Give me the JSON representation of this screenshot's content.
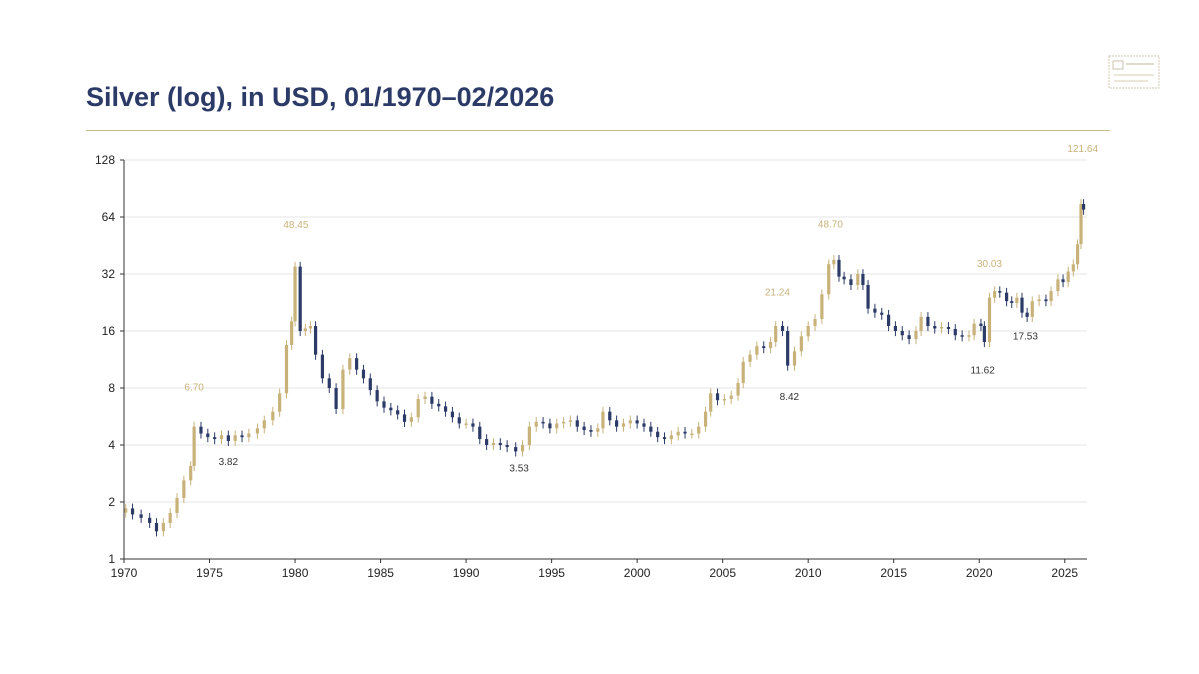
{
  "title": "Silver (log), in USD, 01/1970–02/2026",
  "colors": {
    "up": "#c8b27a",
    "down": "#2b3a67",
    "title": "#2b3a67",
    "rule": "#c9bb8a",
    "grid": "#e6e6e6",
    "peak_label": "#c8b27a",
    "trough_label": "#333333"
  },
  "chart_data": {
    "type": "candlestick",
    "title": "Silver (log), in USD, 01/1970–02/2026",
    "xlabel": "",
    "ylabel": "",
    "yscale": "log2",
    "xlim": [
      1970,
      2026.3
    ],
    "ylim": [
      1,
      128
    ],
    "grid": true,
    "x_ticks": [
      "1970",
      "1975",
      "1980",
      "1985",
      "1990",
      "1995",
      "2000",
      "2005",
      "2010",
      "2015",
      "2020",
      "2025"
    ],
    "y_ticks": [
      "1",
      "2",
      "4",
      "8",
      "16",
      "32",
      "64",
      "128"
    ],
    "annotations": [
      {
        "label": "6.70",
        "x": 1974.1,
        "y": 6.7,
        "kind": "peak"
      },
      {
        "label": "3.82",
        "x": 1976.1,
        "y": 3.82,
        "kind": "trough"
      },
      {
        "label": "48.45",
        "x": 1980.05,
        "y": 48.45,
        "kind": "peak"
      },
      {
        "label": "3.53",
        "x": 1993.1,
        "y": 3.53,
        "kind": "trough"
      },
      {
        "label": "21.24",
        "x": 2008.2,
        "y": 21.24,
        "kind": "peak"
      },
      {
        "label": "8.42",
        "x": 2008.9,
        "y": 8.42,
        "kind": "trough"
      },
      {
        "label": "48.70",
        "x": 2011.3,
        "y": 48.7,
        "kind": "peak"
      },
      {
        "label": "11.62",
        "x": 2020.2,
        "y": 11.62,
        "kind": "trough"
      },
      {
        "label": "30.03",
        "x": 2020.6,
        "y": 30.03,
        "kind": "peak"
      },
      {
        "label": "17.53",
        "x": 2022.7,
        "y": 17.53,
        "kind": "trough"
      },
      {
        "label": "121.64",
        "x": 2026.05,
        "y": 121.64,
        "kind": "peak"
      }
    ],
    "points": [
      [
        1970.1,
        1.85
      ],
      [
        1970.5,
        1.72
      ],
      [
        1971.0,
        1.65
      ],
      [
        1971.5,
        1.55
      ],
      [
        1971.9,
        1.4
      ],
      [
        1972.3,
        1.55
      ],
      [
        1972.7,
        1.75
      ],
      [
        1973.1,
        2.1
      ],
      [
        1973.5,
        2.6
      ],
      [
        1973.9,
        3.1
      ],
      [
        1974.1,
        5.0
      ],
      [
        1974.5,
        4.6
      ],
      [
        1974.9,
        4.4
      ],
      [
        1975.3,
        4.3
      ],
      [
        1975.7,
        4.5
      ],
      [
        1976.1,
        4.2
      ],
      [
        1976.5,
        4.5
      ],
      [
        1976.9,
        4.4
      ],
      [
        1977.3,
        4.6
      ],
      [
        1977.8,
        4.9
      ],
      [
        1978.2,
        5.4
      ],
      [
        1978.7,
        6.0
      ],
      [
        1979.1,
        7.5
      ],
      [
        1979.5,
        13.5
      ],
      [
        1979.8,
        18.0
      ],
      [
        1980.0,
        35.0
      ],
      [
        1980.3,
        16.0
      ],
      [
        1980.6,
        16.5
      ],
      [
        1980.9,
        17.0
      ],
      [
        1981.2,
        12.0
      ],
      [
        1981.6,
        9.0
      ],
      [
        1982.0,
        8.0
      ],
      [
        1982.4,
        6.2
      ],
      [
        1982.8,
        10.0
      ],
      [
        1983.2,
        11.5
      ],
      [
        1983.6,
        10.0
      ],
      [
        1984.0,
        9.0
      ],
      [
        1984.4,
        7.8
      ],
      [
        1984.8,
        6.8
      ],
      [
        1985.2,
        6.3
      ],
      [
        1985.6,
        6.1
      ],
      [
        1986.0,
        5.8
      ],
      [
        1986.4,
        5.3
      ],
      [
        1986.8,
        5.6
      ],
      [
        1987.2,
        7.0
      ],
      [
        1987.6,
        7.2
      ],
      [
        1988.0,
        6.6
      ],
      [
        1988.4,
        6.4
      ],
      [
        1988.8,
        6.0
      ],
      [
        1989.2,
        5.6
      ],
      [
        1989.6,
        5.2
      ],
      [
        1990.0,
        5.2
      ],
      [
        1990.4,
        5.0
      ],
      [
        1990.8,
        4.3
      ],
      [
        1991.2,
        4.0
      ],
      [
        1991.6,
        4.1
      ],
      [
        1992.0,
        4.0
      ],
      [
        1992.4,
        3.9
      ],
      [
        1992.9,
        3.7
      ],
      [
        1993.3,
        4.0
      ],
      [
        1993.7,
        5.0
      ],
      [
        1994.1,
        5.3
      ],
      [
        1994.5,
        5.2
      ],
      [
        1994.9,
        4.9
      ],
      [
        1995.3,
        5.2
      ],
      [
        1995.7,
        5.3
      ],
      [
        1996.1,
        5.4
      ],
      [
        1996.5,
        5.0
      ],
      [
        1996.9,
        4.8
      ],
      [
        1997.3,
        4.7
      ],
      [
        1997.7,
        4.9
      ],
      [
        1998.0,
        6.0
      ],
      [
        1998.4,
        5.4
      ],
      [
        1998.8,
        5.0
      ],
      [
        1999.2,
        5.2
      ],
      [
        1999.6,
        5.4
      ],
      [
        2000.0,
        5.2
      ],
      [
        2000.4,
        5.0
      ],
      [
        2000.8,
        4.7
      ],
      [
        2001.2,
        4.4
      ],
      [
        2001.6,
        4.3
      ],
      [
        2002.0,
        4.5
      ],
      [
        2002.4,
        4.7
      ],
      [
        2002.8,
        4.6
      ],
      [
        2003.2,
        4.6
      ],
      [
        2003.6,
        5.0
      ],
      [
        2004.0,
        6.0
      ],
      [
        2004.3,
        7.5
      ],
      [
        2004.7,
        6.9
      ],
      [
        2005.1,
        7.0
      ],
      [
        2005.5,
        7.3
      ],
      [
        2005.9,
        8.5
      ],
      [
        2006.2,
        11.0
      ],
      [
        2006.6,
        12.0
      ],
      [
        2007.0,
        13.3
      ],
      [
        2007.4,
        13.0
      ],
      [
        2007.8,
        14.0
      ],
      [
        2008.1,
        17.0
      ],
      [
        2008.5,
        16.0
      ],
      [
        2008.8,
        10.5
      ],
      [
        2009.2,
        12.5
      ],
      [
        2009.6,
        15.0
      ],
      [
        2010.0,
        17.0
      ],
      [
        2010.4,
        18.5
      ],
      [
        2010.8,
        25.0
      ],
      [
        2011.2,
        36.0
      ],
      [
        2011.5,
        38.0
      ],
      [
        2011.8,
        31.0
      ],
      [
        2012.1,
        30.0
      ],
      [
        2012.5,
        28.0
      ],
      [
        2012.9,
        32.0
      ],
      [
        2013.2,
        28.0
      ],
      [
        2013.5,
        21.0
      ],
      [
        2013.9,
        20.0
      ],
      [
        2014.3,
        19.5
      ],
      [
        2014.7,
        17.0
      ],
      [
        2015.1,
        16.0
      ],
      [
        2015.5,
        15.2
      ],
      [
        2015.9,
        14.5
      ],
      [
        2016.3,
        16.0
      ],
      [
        2016.6,
        19.0
      ],
      [
        2017.0,
        17.0
      ],
      [
        2017.4,
        16.5
      ],
      [
        2017.8,
        16.8
      ],
      [
        2018.2,
        16.4
      ],
      [
        2018.6,
        15.2
      ],
      [
        2019.0,
        15.0
      ],
      [
        2019.4,
        15.2
      ],
      [
        2019.7,
        17.5
      ],
      [
        2020.1,
        17.0
      ],
      [
        2020.3,
        14.0
      ],
      [
        2020.6,
        24.0
      ],
      [
        2020.9,
        26.0
      ],
      [
        2021.2,
        25.5
      ],
      [
        2021.6,
        23.0
      ],
      [
        2021.9,
        22.5
      ],
      [
        2022.2,
        24.0
      ],
      [
        2022.5,
        20.0
      ],
      [
        2022.8,
        19.0
      ],
      [
        2023.1,
        23.0
      ],
      [
        2023.5,
        23.5
      ],
      [
        2023.9,
        23.0
      ],
      [
        2024.2,
        26.0
      ],
      [
        2024.6,
        30.0
      ],
      [
        2024.9,
        29.0
      ],
      [
        2025.2,
        33.0
      ],
      [
        2025.5,
        36.0
      ],
      [
        2025.75,
        46.0
      ],
      [
        2025.95,
        75.0
      ],
      [
        2026.1,
        70.0
      ]
    ]
  }
}
